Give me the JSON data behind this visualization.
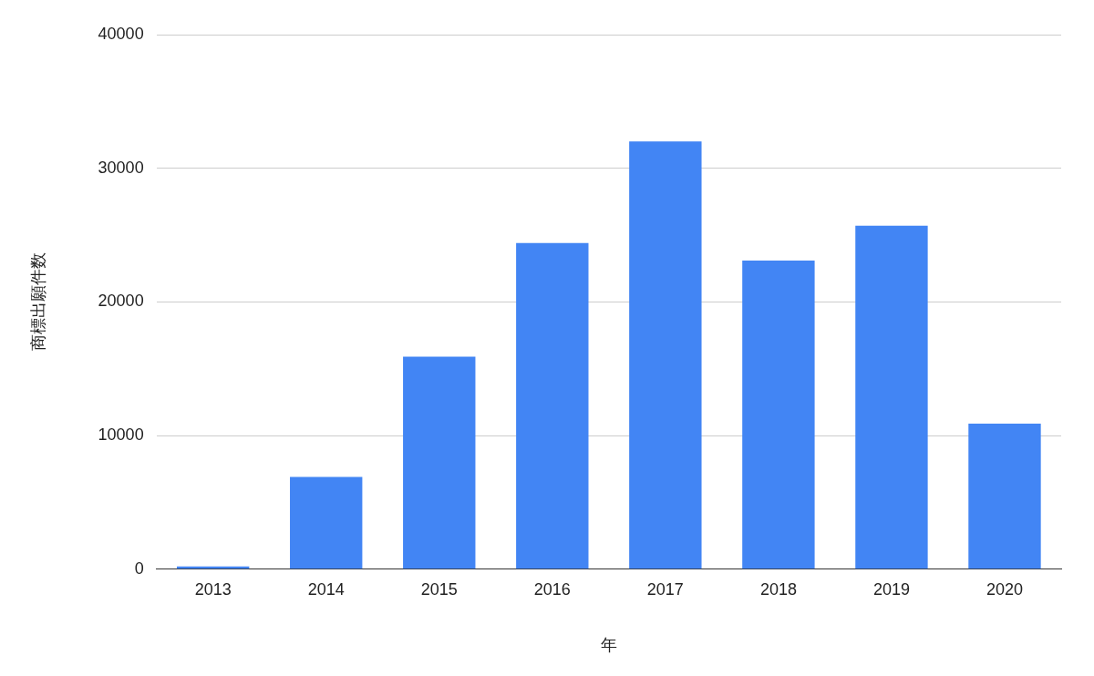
{
  "chart_data": {
    "type": "bar",
    "xlabel": "年",
    "ylabel": "商標出願件数",
    "categories": [
      "2013",
      "2014",
      "2015",
      "2016",
      "2017",
      "2018",
      "2019",
      "2020"
    ],
    "values": [
      200,
      6900,
      15900,
      24400,
      32000,
      23100,
      25700,
      10900
    ],
    "color": "#4285f4",
    "ylim": [
      0,
      40000
    ],
    "yticks": [
      0,
      10000,
      20000,
      30000,
      40000
    ],
    "grid": "y",
    "legend": false
  }
}
